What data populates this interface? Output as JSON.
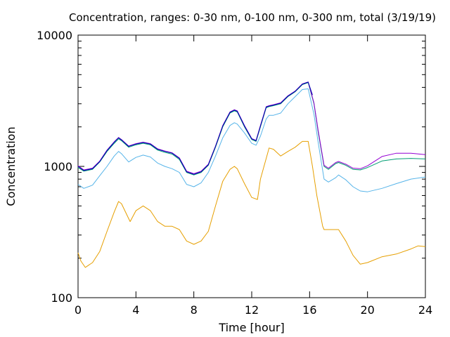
{
  "chart_data": {
    "type": "line",
    "title": "Concentration, ranges: 0-30 nm, 0-100 nm, 0-300 nm, total (3/19/19)",
    "xlabel": "Time [hour]",
    "ylabel": "Concentration",
    "xlim": [
      0,
      24
    ],
    "ylim": [
      100,
      10000
    ],
    "yscale": "log",
    "grid": false,
    "xticks": [
      0,
      4,
      8,
      12,
      16,
      20,
      24
    ],
    "yticks": [
      100,
      1000,
      10000
    ],
    "series": [
      {
        "color": "#e69f00",
        "points": [
          [
            0,
            220
          ],
          [
            0.2,
            190
          ],
          [
            0.5,
            170
          ],
          [
            1,
            185
          ],
          [
            1.5,
            225
          ],
          [
            2,
            320
          ],
          [
            2.5,
            450
          ],
          [
            2.8,
            540
          ],
          [
            3,
            520
          ],
          [
            3.5,
            400
          ],
          [
            3.6,
            380
          ],
          [
            4,
            460
          ],
          [
            4.5,
            500
          ],
          [
            5,
            460
          ],
          [
            5.5,
            380
          ],
          [
            6,
            350
          ],
          [
            6.5,
            350
          ],
          [
            7,
            330
          ],
          [
            7.5,
            270
          ],
          [
            8,
            255
          ],
          [
            8.5,
            270
          ],
          [
            9,
            320
          ],
          [
            9.5,
            500
          ],
          [
            10,
            770
          ],
          [
            10.5,
            950
          ],
          [
            10.8,
            1000
          ],
          [
            11,
            960
          ],
          [
            11.5,
            740
          ],
          [
            12,
            580
          ],
          [
            12.4,
            560
          ],
          [
            12.6,
            800
          ],
          [
            13,
            1150
          ],
          [
            13.2,
            1380
          ],
          [
            13.5,
            1350
          ],
          [
            14,
            1200
          ],
          [
            14.5,
            1300
          ],
          [
            15,
            1400
          ],
          [
            15.5,
            1550
          ],
          [
            15.9,
            1550
          ],
          [
            16.2,
            1000
          ],
          [
            16.5,
            600
          ],
          [
            16.9,
            350
          ],
          [
            17,
            330
          ],
          [
            17.5,
            330
          ],
          [
            18,
            330
          ],
          [
            18.5,
            270
          ],
          [
            19,
            210
          ],
          [
            19.5,
            180
          ],
          [
            20,
            185
          ],
          [
            21,
            205
          ],
          [
            22,
            215
          ],
          [
            23,
            235
          ],
          [
            23.5,
            248
          ],
          [
            24,
            245
          ]
        ]
      },
      {
        "color": "#56b4e9",
        "points": [
          [
            0,
            730
          ],
          [
            0.4,
            680
          ],
          [
            1,
            720
          ],
          [
            1.5,
            850
          ],
          [
            2,
            1000
          ],
          [
            2.5,
            1200
          ],
          [
            2.8,
            1300
          ],
          [
            3,
            1250
          ],
          [
            3.5,
            1080
          ],
          [
            4,
            1170
          ],
          [
            4.5,
            1220
          ],
          [
            5,
            1180
          ],
          [
            5.5,
            1060
          ],
          [
            6,
            1000
          ],
          [
            6.5,
            960
          ],
          [
            7,
            900
          ],
          [
            7.5,
            730
          ],
          [
            8,
            700
          ],
          [
            8.5,
            750
          ],
          [
            9,
            900
          ],
          [
            9.5,
            1200
          ],
          [
            10,
            1650
          ],
          [
            10.5,
            2050
          ],
          [
            10.8,
            2150
          ],
          [
            11,
            2100
          ],
          [
            11.5,
            1800
          ],
          [
            12,
            1500
          ],
          [
            12.3,
            1450
          ],
          [
            12.6,
            1700
          ],
          [
            13,
            2300
          ],
          [
            13.2,
            2450
          ],
          [
            13.5,
            2450
          ],
          [
            14,
            2550
          ],
          [
            14.5,
            3000
          ],
          [
            15,
            3400
          ],
          [
            15.5,
            3850
          ],
          [
            15.9,
            3900
          ],
          [
            16.3,
            2500
          ],
          [
            16.6,
            1500
          ],
          [
            17,
            800
          ],
          [
            17.3,
            760
          ],
          [
            17.8,
            820
          ],
          [
            18,
            860
          ],
          [
            18.5,
            790
          ],
          [
            19,
            700
          ],
          [
            19.5,
            650
          ],
          [
            20,
            640
          ],
          [
            21,
            680
          ],
          [
            22,
            740
          ],
          [
            23,
            800
          ],
          [
            24,
            830
          ]
        ]
      },
      {
        "color": "#009e73",
        "points": [
          [
            0,
            980
          ],
          [
            0.4,
            920
          ],
          [
            1,
            950
          ],
          [
            1.5,
            1080
          ],
          [
            2,
            1300
          ],
          [
            2.5,
            1500
          ],
          [
            2.8,
            1620
          ],
          [
            3,
            1570
          ],
          [
            3.5,
            1400
          ],
          [
            4,
            1460
          ],
          [
            4.5,
            1500
          ],
          [
            5,
            1460
          ],
          [
            5.5,
            1330
          ],
          [
            6,
            1280
          ],
          [
            6.5,
            1240
          ],
          [
            7,
            1130
          ],
          [
            7.5,
            900
          ],
          [
            8,
            860
          ],
          [
            8.5,
            900
          ],
          [
            9,
            1020
          ],
          [
            9.5,
            1400
          ],
          [
            10,
            2000
          ],
          [
            10.5,
            2550
          ],
          [
            10.8,
            2650
          ],
          [
            11,
            2600
          ],
          [
            11.5,
            2000
          ],
          [
            12,
            1600
          ],
          [
            12.3,
            1550
          ],
          [
            12.6,
            2000
          ],
          [
            13,
            2800
          ],
          [
            13.2,
            2850
          ],
          [
            13.5,
            2900
          ],
          [
            14,
            3000
          ],
          [
            14.5,
            3400
          ],
          [
            15,
            3700
          ],
          [
            15.5,
            4200
          ],
          [
            15.9,
            4350
          ],
          [
            16.3,
            3000
          ],
          [
            16.6,
            1800
          ],
          [
            17,
            1000
          ],
          [
            17.3,
            950
          ],
          [
            17.8,
            1050
          ],
          [
            18,
            1070
          ],
          [
            18.5,
            1020
          ],
          [
            19,
            950
          ],
          [
            19.5,
            940
          ],
          [
            20,
            980
          ],
          [
            21,
            1100
          ],
          [
            22,
            1140
          ],
          [
            23,
            1150
          ],
          [
            24,
            1140
          ]
        ]
      },
      {
        "color": "#9400d3",
        "points": [
          [
            0,
            1010
          ],
          [
            0.4,
            940
          ],
          [
            1,
            970
          ],
          [
            1.5,
            1100
          ],
          [
            2,
            1330
          ],
          [
            2.5,
            1540
          ],
          [
            2.8,
            1660
          ],
          [
            3,
            1600
          ],
          [
            3.5,
            1430
          ],
          [
            4,
            1490
          ],
          [
            4.5,
            1530
          ],
          [
            5,
            1490
          ],
          [
            5.5,
            1360
          ],
          [
            6,
            1310
          ],
          [
            6.5,
            1270
          ],
          [
            7,
            1160
          ],
          [
            7.5,
            920
          ],
          [
            8,
            880
          ],
          [
            8.5,
            920
          ],
          [
            9,
            1040
          ],
          [
            9.5,
            1430
          ],
          [
            10,
            2050
          ],
          [
            10.5,
            2600
          ],
          [
            10.8,
            2700
          ],
          [
            11,
            2650
          ],
          [
            11.5,
            2050
          ],
          [
            12,
            1630
          ],
          [
            12.3,
            1580
          ],
          [
            12.6,
            2050
          ],
          [
            13,
            2850
          ],
          [
            13.2,
            2900
          ],
          [
            13.5,
            2950
          ],
          [
            14,
            3050
          ],
          [
            14.5,
            3450
          ],
          [
            15,
            3750
          ],
          [
            15.5,
            4250
          ],
          [
            15.9,
            4400
          ],
          [
            16.3,
            3050
          ],
          [
            16.6,
            1850
          ],
          [
            17,
            1020
          ],
          [
            17.3,
            970
          ],
          [
            17.8,
            1070
          ],
          [
            18,
            1090
          ],
          [
            18.5,
            1040
          ],
          [
            19,
            970
          ],
          [
            19.5,
            960
          ],
          [
            20,
            1010
          ],
          [
            21,
            1190
          ],
          [
            22,
            1260
          ],
          [
            23,
            1260
          ],
          [
            24,
            1230
          ]
        ]
      },
      {
        "color": "#0000b0",
        "points": [
          [
            0,
            1000
          ],
          [
            0.4,
            930
          ],
          [
            1,
            960
          ],
          [
            1.5,
            1090
          ],
          [
            2,
            1320
          ],
          [
            2.5,
            1530
          ],
          [
            2.8,
            1650
          ],
          [
            3,
            1590
          ],
          [
            3.5,
            1420
          ],
          [
            4,
            1480
          ],
          [
            4.5,
            1520
          ],
          [
            5,
            1480
          ],
          [
            5.5,
            1350
          ],
          [
            6,
            1300
          ],
          [
            6.5,
            1260
          ],
          [
            7,
            1150
          ],
          [
            7.5,
            910
          ],
          [
            8,
            870
          ],
          [
            8.5,
            910
          ],
          [
            9,
            1030
          ],
          [
            9.5,
            1420
          ],
          [
            10,
            2030
          ],
          [
            10.5,
            2580
          ],
          [
            10.8,
            2680
          ],
          [
            11,
            2630
          ],
          [
            11.5,
            2030
          ],
          [
            12,
            1620
          ],
          [
            12.3,
            1570
          ],
          [
            12.6,
            2030
          ],
          [
            13,
            2830
          ],
          [
            13.2,
            2880
          ],
          [
            13.5,
            2930
          ],
          [
            14,
            3030
          ],
          [
            14.5,
            3430
          ],
          [
            15,
            3730
          ],
          [
            15.5,
            4230
          ],
          [
            15.9,
            4380
          ],
          [
            16.2,
            3500
          ]
        ]
      }
    ]
  }
}
